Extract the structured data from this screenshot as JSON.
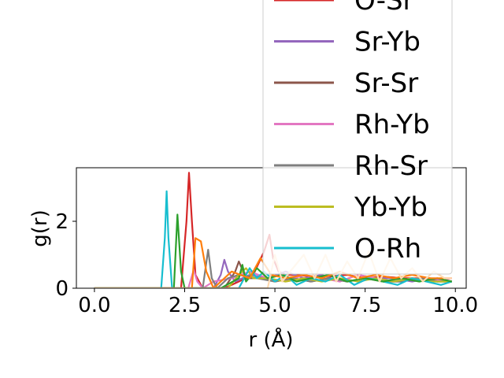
{
  "chart_data": {
    "type": "line",
    "xlabel": "r (Å)",
    "ylabel": "g(r)",
    "xlim": [
      -0.5,
      10.3
    ],
    "ylim": [
      0,
      3.6
    ],
    "xticks": [
      0.0,
      2.5,
      5.0,
      7.5,
      10.0
    ],
    "xtick_labels": [
      "0.0",
      "2.5",
      "5.0",
      "7.5",
      "10.0"
    ],
    "yticks": [
      0,
      2
    ],
    "ytick_labels": [
      "0",
      "2"
    ],
    "legend_position": "upper right, extending above the axes",
    "series": [
      {
        "name": "O-Sr",
        "color": "#d62728",
        "x": [
          0,
          2.0,
          2.4,
          2.55,
          2.62,
          2.7,
          2.8,
          3.0,
          3.3,
          3.6,
          4.0,
          4.4,
          4.7,
          4.85,
          4.95,
          5.1,
          5.3,
          5.6,
          6.0,
          6.5,
          7.0,
          7.5,
          8.0,
          8.5,
          9.0,
          9.5,
          9.9
        ],
        "y": [
          0,
          0,
          0,
          2.0,
          3.45,
          2.0,
          0.4,
          0,
          0,
          0,
          0.2,
          0.4,
          1.1,
          1.6,
          0.9,
          0.5,
          0.4,
          0.4,
          0.35,
          0.35,
          0.4,
          0.3,
          0.35,
          0.3,
          0.3,
          0.25,
          0.2
        ]
      },
      {
        "name": "Sr-Yb",
        "color": "#9467bd",
        "x": [
          0,
          3.3,
          3.5,
          3.6,
          3.7,
          3.9,
          4.3,
          4.8,
          5.3,
          5.8,
          6.3,
          6.8,
          7.3,
          7.8,
          8.3,
          8.8,
          9.3,
          9.9
        ],
        "y": [
          0,
          0,
          0.4,
          0.85,
          0.5,
          0.2,
          0.4,
          0.3,
          0.5,
          0.3,
          0.4,
          0.2,
          0.4,
          0.3,
          0.3,
          0.2,
          0.3,
          0.2
        ]
      },
      {
        "name": "Sr-Sr",
        "color": "#8c564b",
        "x": [
          0,
          3.6,
          3.9,
          4.0,
          4.2,
          4.6,
          5.0,
          5.5,
          6.0,
          6.5,
          7.0,
          7.5,
          8.0,
          8.5,
          9.0,
          9.5,
          9.9
        ],
        "y": [
          0,
          0,
          0.5,
          0.8,
          0.3,
          0.3,
          0.2,
          0.3,
          0.2,
          0.3,
          0.2,
          0.3,
          0.2,
          0.2,
          0.3,
          0.2,
          0.2
        ]
      },
      {
        "name": "Rh-Yb",
        "color": "#e377c2",
        "x": [
          0,
          2.6,
          2.75,
          2.85,
          3.0,
          3.3,
          3.8,
          4.3,
          4.8,
          5.3,
          5.8,
          6.3,
          6.8,
          7.3,
          7.8,
          8.3,
          8.8,
          9.3,
          9.9
        ],
        "y": [
          0,
          0,
          0.55,
          0.2,
          0,
          0.2,
          0.3,
          0.5,
          0.3,
          0.2,
          0.4,
          0.3,
          0.2,
          0.4,
          0.3,
          0.2,
          0.3,
          0.2,
          0.3
        ]
      },
      {
        "name": "Rh-Sr",
        "color": "#7f7f7f",
        "x": [
          0,
          3.0,
          3.15,
          3.25,
          3.4,
          3.7,
          4.0,
          4.5,
          5.0,
          5.5,
          6.0,
          6.5,
          7.0,
          7.5,
          8.0,
          8.5,
          9.0,
          9.5,
          9.9
        ],
        "y": [
          0,
          0,
          1.15,
          0.3,
          0,
          0.3,
          0.4,
          0.3,
          0.2,
          0.3,
          0.2,
          0.3,
          0.2,
          0.3,
          0.2,
          0.2,
          0.3,
          0.2,
          0.2
        ]
      },
      {
        "name": "Yb-Yb",
        "color": "#bcbd22",
        "x": [
          0,
          3.7,
          4.0,
          4.2,
          4.4,
          4.8,
          5.3,
          5.8,
          6.3,
          6.8,
          7.3,
          7.8,
          8.3,
          8.8,
          9.3,
          9.9
        ],
        "y": [
          0,
          0,
          0.4,
          0.6,
          0.3,
          0.3,
          0.2,
          0.3,
          0.2,
          0.3,
          0.2,
          0.3,
          0.2,
          0.3,
          0.2,
          0.2
        ]
      },
      {
        "name": "O-Rh",
        "color": "#17becf",
        "x": [
          0,
          1.85,
          1.95,
          2.0,
          2.05,
          2.15,
          2.5,
          3.0,
          3.5,
          4.0,
          4.3,
          4.5,
          4.7,
          5.0,
          5.3,
          5.6,
          6.0,
          6.4,
          6.8,
          7.2,
          7.6,
          8.0,
          8.4,
          8.8,
          9.2,
          9.6,
          9.9
        ],
        "y": [
          0,
          0,
          1.5,
          2.9,
          1.5,
          0,
          0,
          0,
          0,
          0,
          0.6,
          0.3,
          0.5,
          0.2,
          0.4,
          0.1,
          0.3,
          0.2,
          0.4,
          0.1,
          0.3,
          0.2,
          0.1,
          0.3,
          0.2,
          0.1,
          0.2
        ]
      },
      {
        "name": "",
        "color": "#2ca02c",
        "x": [
          0,
          2.2,
          2.3,
          2.4,
          2.5,
          3.0,
          3.5,
          4.0,
          4.1,
          4.2,
          4.5,
          4.8,
          5.2,
          5.6,
          6.0,
          6.5,
          7.0,
          7.5,
          8.0,
          8.5,
          9.0,
          9.5,
          9.9
        ],
        "y": [
          0,
          0,
          2.2,
          0.5,
          0,
          0,
          0,
          0.3,
          0.7,
          0.2,
          0.6,
          0.3,
          0.4,
          0.2,
          0.3,
          0.4,
          0.2,
          0.3,
          0.2,
          0.3,
          0.2,
          0.3,
          0.2
        ]
      },
      {
        "name": "",
        "color": "#ff7f0e",
        "x": [
          0,
          2.7,
          2.8,
          2.95,
          3.1,
          3.3,
          3.8,
          4.3,
          4.6,
          4.9,
          5.3,
          5.8,
          6.3,
          6.8,
          7.3,
          7.8,
          8.3,
          8.8,
          9.3,
          9.9
        ],
        "y": [
          0,
          0,
          1.5,
          1.4,
          0.5,
          0,
          0.5,
          0.3,
          0.9,
          0.4,
          0.3,
          0.4,
          0.3,
          0.5,
          0.3,
          0.4,
          0.3,
          0.4,
          0.3,
          0.3
        ]
      },
      {
        "name": "",
        "color": "#ffdab0",
        "x": [
          0,
          4.8,
          5.0,
          5.2,
          5.5,
          5.8,
          6.1,
          6.4,
          6.7,
          7.0,
          7.3,
          7.6,
          7.9,
          8.2,
          8.5,
          8.8,
          9.1,
          9.4,
          9.7,
          9.9
        ],
        "y": [
          0,
          0,
          1.0,
          0.2,
          0.6,
          1.0,
          0.3,
          1.0,
          0.2,
          0.8,
          0.3,
          1.1,
          0.2,
          0.9,
          0.3,
          0.6,
          0.2,
          0.5,
          0.3,
          0.3
        ]
      }
    ]
  }
}
